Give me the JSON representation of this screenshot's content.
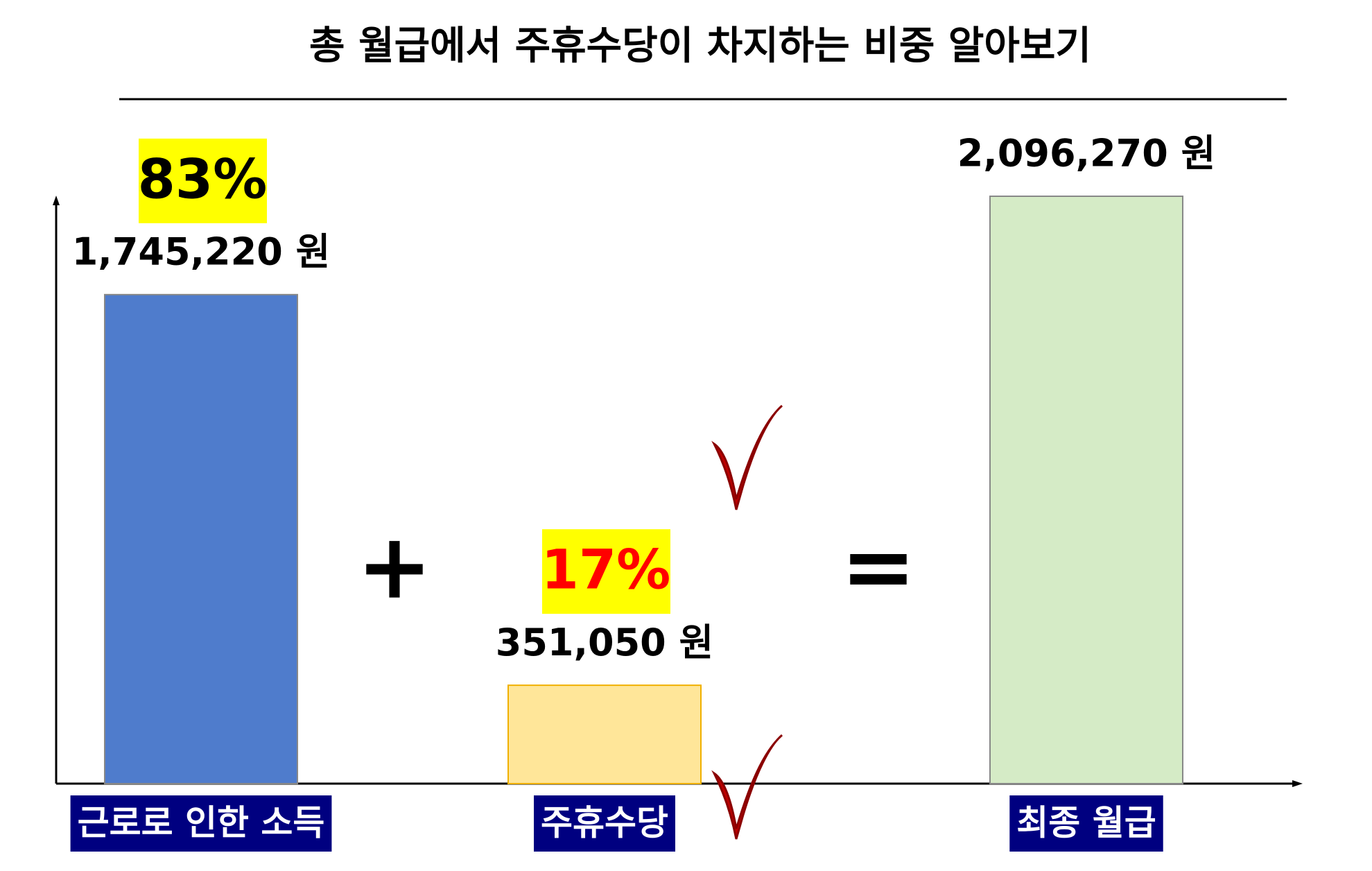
{
  "chart_data": {
    "type": "bar",
    "title": "총 월급에서 주휴수당이 차지하는 비중 알아보기",
    "categories": [
      "근로로 인한 소득",
      "주휴수당",
      "최종 월급"
    ],
    "values": [
      1745220,
      351050,
      2096270
    ],
    "value_labels": [
      "1,745,220 원",
      "351,050 원",
      "2,096,270 원"
    ],
    "colors": [
      "#4f7ccc",
      "#ffe699",
      "#d5ebc6"
    ],
    "shares": [
      83,
      17,
      null
    ],
    "share_labels": [
      "83%",
      "17%",
      null
    ],
    "share_colors": [
      "#000000",
      "#ff0000",
      null
    ],
    "operators": [
      "+",
      "="
    ]
  }
}
